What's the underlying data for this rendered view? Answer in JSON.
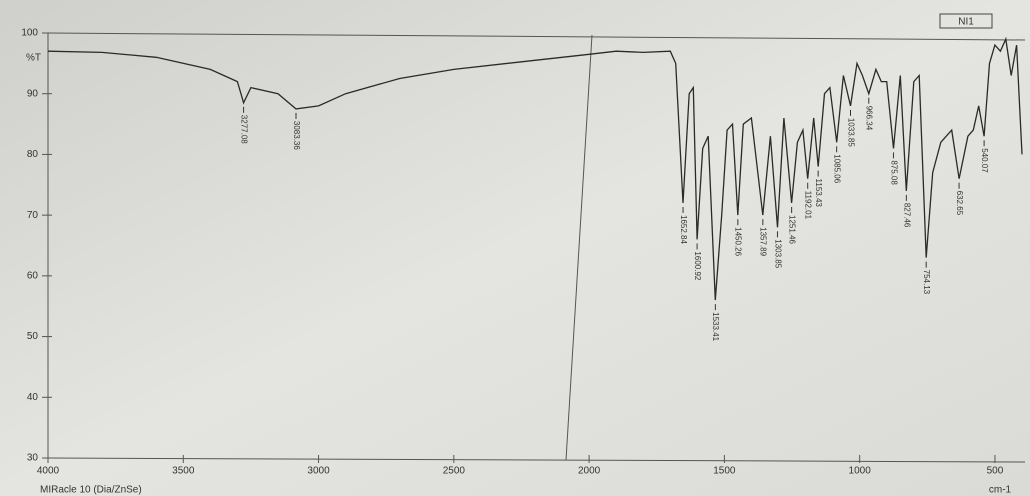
{
  "chart_data": {
    "type": "line",
    "y_label": "%T",
    "x_label": "cm-1",
    "instrument": "MIRacle 10 (Dia/ZnSe)",
    "sample": "NI1",
    "xlim": [
      4000,
      400
    ],
    "ylim": [
      30,
      100
    ],
    "xticks": [
      4000,
      3500,
      3000,
      2500,
      2000,
      1500,
      1000,
      500
    ],
    "yticks": [
      30,
      40,
      50,
      60,
      70,
      80,
      90,
      100
    ],
    "color": "#2a2a2a",
    "x": [
      4000,
      3800,
      3600,
      3400,
      3300,
      3277.08,
      3250,
      3150,
      3083.36,
      3000,
      2900,
      2700,
      2500,
      2200,
      2000,
      1900,
      1800,
      1700,
      1680,
      1652.84,
      1630,
      1615,
      1600.92,
      1580,
      1560,
      1533.41,
      1510,
      1490,
      1470,
      1450.26,
      1430,
      1400,
      1357.89,
      1330,
      1303.85,
      1280,
      1251.46,
      1230,
      1210,
      1192.01,
      1170,
      1153.43,
      1130,
      1110,
      1085.06,
      1060,
      1033.85,
      1010,
      990,
      966.34,
      940,
      920,
      900,
      875.08,
      850,
      827.46,
      800,
      780,
      754.13,
      730,
      700,
      660,
      632.65,
      600,
      580,
      560,
      540.07,
      520,
      500,
      480,
      460,
      440,
      420,
      400
    ],
    "values": [
      97,
      96.8,
      96,
      94,
      92,
      88.5,
      91,
      90,
      87.5,
      88,
      90,
      92.5,
      94,
      95.5,
      96.5,
      97,
      96.8,
      97,
      95,
      72,
      90,
      91,
      66,
      81,
      83,
      56,
      70,
      84,
      85,
      70,
      85,
      86,
      70,
      83,
      68,
      86,
      72,
      82,
      84,
      76,
      86,
      78,
      90,
      91,
      82,
      93,
      88,
      95,
      93,
      90,
      94,
      92,
      92,
      81,
      93,
      74,
      92,
      93,
      63,
      77,
      82,
      84,
      76,
      83,
      84,
      88,
      83,
      95,
      98,
      97,
      99,
      93,
      98,
      80
    ],
    "annotations": [
      {
        "x": 3277.08,
        "y": 88.5
      },
      {
        "x": 3083.36,
        "y": 87.5
      },
      {
        "x": 1652.84,
        "y": 72
      },
      {
        "x": 1600.92,
        "y": 66
      },
      {
        "x": 1533.41,
        "y": 56
      },
      {
        "x": 1450.26,
        "y": 70
      },
      {
        "x": 1357.89,
        "y": 70
      },
      {
        "x": 1303.85,
        "y": 68
      },
      {
        "x": 1251.46,
        "y": 72
      },
      {
        "x": 1192.01,
        "y": 76
      },
      {
        "x": 1153.43,
        "y": 78
      },
      {
        "x": 1085.06,
        "y": 82
      },
      {
        "x": 1033.85,
        "y": 88
      },
      {
        "x": 966.34,
        "y": 90
      },
      {
        "x": 875.08,
        "y": 81
      },
      {
        "x": 827.46,
        "y": 74
      },
      {
        "x": 754.13,
        "y": 63
      },
      {
        "x": 632.65,
        "y": 76
      },
      {
        "x": 540.07,
        "y": 83
      }
    ]
  }
}
